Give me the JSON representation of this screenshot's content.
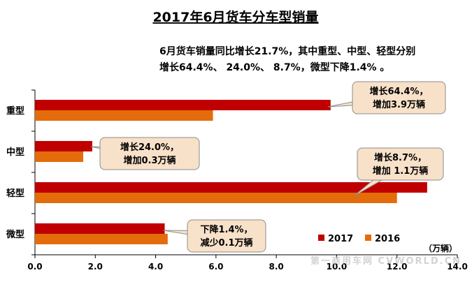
{
  "chart_data": {
    "type": "bar",
    "orientation": "horizontal",
    "title": "2017年6月货车分车型销量",
    "summary_lines": [
      "6月货车销量同比增长21.7%，其中重型、中型、轻型分别",
      "增长64.4%、 24.0%、 8.7%，微型下降1.4% 。"
    ],
    "categories": [
      "重型",
      "中型",
      "轻型",
      "微型"
    ],
    "series": [
      {
        "name": "2017",
        "color": "#C00000",
        "values": [
          9.8,
          1.9,
          13.0,
          4.3
        ]
      },
      {
        "name": "2016",
        "color": "#E46C0A",
        "values": [
          5.9,
          1.6,
          12.0,
          4.4
        ]
      }
    ],
    "x_ticks": [
      "0.0",
      "2.0",
      "4.0",
      "6.0",
      "8.0",
      "10.0",
      "12.0",
      "14.0"
    ],
    "xlim": [
      0,
      14
    ],
    "unit_label": "（万辆）",
    "legend_position": "bottom-right",
    "grid": false,
    "annotations": [
      {
        "category": "重型",
        "lines": [
          "增长64.4%，",
          "增加3.9万辆"
        ]
      },
      {
        "category": "中型",
        "lines": [
          "增长24.0%，",
          "增加0.3万辆"
        ]
      },
      {
        "category": "轻型",
        "lines": [
          "增长8.7%，",
          "增加 1.1万辆"
        ]
      },
      {
        "category": "微型",
        "lines": [
          "下降1.4%，",
          "减少0.1万辆"
        ]
      }
    ],
    "watermark": "第一商用车网 CVWORLD.CN"
  }
}
